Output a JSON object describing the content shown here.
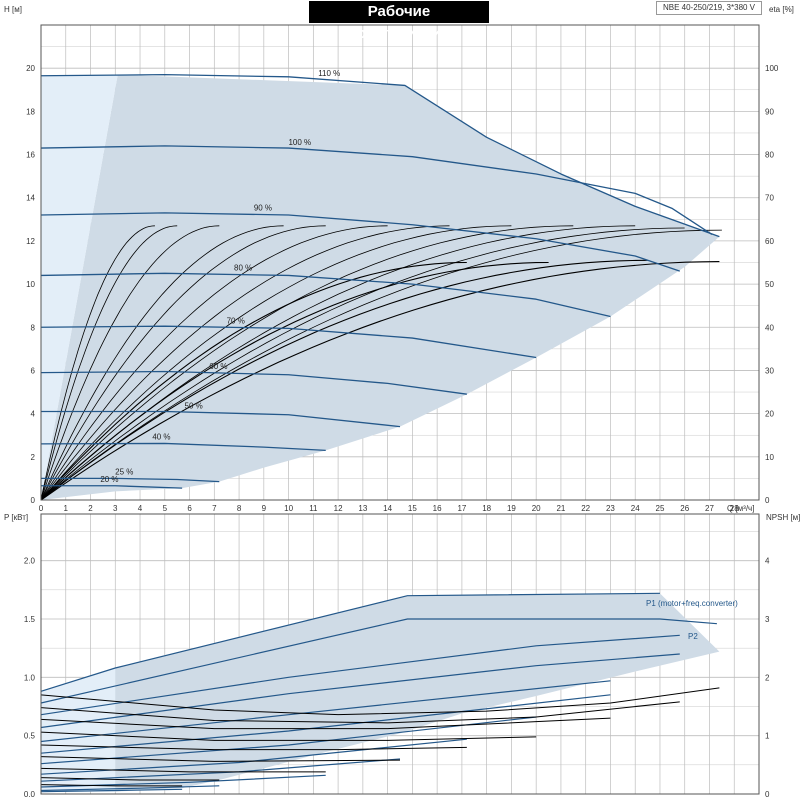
{
  "header": {
    "title": "Рабочие характеристики",
    "model": "NBE 40-250/219, 3*380 V"
  },
  "colors": {
    "envelope_fill": "#cfdbe6",
    "envelope_edge": "#2e5f8c",
    "light_fill": "#e3eef8",
    "curve_blue": "#24588a",
    "curve_black": "#000000",
    "grid": "#bdbdbd"
  },
  "chart_data": [
    {
      "type": "line",
      "title": "",
      "xlabel": "Q [м³/ч]",
      "ylabel": "H [м]",
      "y2label": "eta [%]",
      "xlim": [
        0,
        29
      ],
      "ylim": [
        0,
        22
      ],
      "y2lim": [
        0,
        110
      ],
      "x_ticks": [
        0,
        1,
        2,
        3,
        4,
        5,
        6,
        7,
        8,
        9,
        10,
        11,
        12,
        13,
        14,
        15,
        16,
        17,
        18,
        19,
        20,
        21,
        22,
        23,
        24,
        25,
        26,
        27,
        28
      ],
      "y_ticks": [
        0,
        2,
        4,
        6,
        8,
        10,
        12,
        14,
        16,
        18,
        20
      ],
      "y2_ticks": [
        0,
        10,
        20,
        30,
        40,
        50,
        60,
        70,
        80,
        90,
        100
      ],
      "grid": true,
      "envelope": [
        [
          0,
          0
        ],
        [
          3.1,
          19.7
        ],
        [
          14.7,
          19.2
        ],
        [
          18,
          16.8
        ],
        [
          21,
          15.1
        ],
        [
          24,
          13.6
        ],
        [
          27.4,
          12.2
        ],
        [
          26,
          10.8
        ],
        [
          23,
          8.5
        ],
        [
          20,
          6.6
        ],
        [
          17.2,
          4.9
        ],
        [
          14.5,
          3.4
        ],
        [
          11.5,
          2.3
        ],
        [
          9,
          1.5
        ],
        [
          7.2,
          0.85
        ],
        [
          5.7,
          0.55
        ],
        [
          3,
          0.4
        ]
      ],
      "light_region": [
        [
          0,
          0
        ],
        [
          0,
          19.65
        ],
        [
          3.1,
          19.7
        ]
      ],
      "head_series": [
        {
          "name": "110 %",
          "points": [
            [
              0,
              19.65
            ],
            [
              5,
              19.7
            ],
            [
              10,
              19.6
            ],
            [
              14.7,
              19.2
            ],
            [
              18,
              16.8
            ],
            [
              21,
              15.1
            ],
            [
              24,
              13.6
            ],
            [
              27.4,
              12.2
            ]
          ]
        },
        {
          "name": "100 %",
          "points": [
            [
              0,
              16.3
            ],
            [
              5,
              16.4
            ],
            [
              10,
              16.3
            ],
            [
              15,
              15.9
            ],
            [
              20,
              15.1
            ],
            [
              24,
              14.2
            ],
            [
              25.5,
              13.5
            ],
            [
              27.1,
              12.3
            ]
          ]
        },
        {
          "name": "90 %",
          "points": [
            [
              0,
              13.2
            ],
            [
              5,
              13.3
            ],
            [
              10,
              13.2
            ],
            [
              15,
              12.75
            ],
            [
              20,
              12.1
            ],
            [
              24,
              11.3
            ],
            [
              25.8,
              10.6
            ]
          ]
        },
        {
          "name": "80 %",
          "points": [
            [
              0,
              10.4
            ],
            [
              5,
              10.5
            ],
            [
              10,
              10.4
            ],
            [
              15,
              10.0
            ],
            [
              20,
              9.3
            ],
            [
              23,
              8.5
            ]
          ]
        },
        {
          "name": "70 %",
          "points": [
            [
              0,
              8.0
            ],
            [
              5,
              8.05
            ],
            [
              10,
              7.95
            ],
            [
              15,
              7.5
            ],
            [
              20,
              6.6
            ]
          ]
        },
        {
          "name": "60 %",
          "points": [
            [
              0,
              5.9
            ],
            [
              5,
              5.95
            ],
            [
              10,
              5.8
            ],
            [
              14,
              5.4
            ],
            [
              17.2,
              4.9
            ]
          ]
        },
        {
          "name": "50 %",
          "points": [
            [
              0,
              4.1
            ],
            [
              5,
              4.1
            ],
            [
              10,
              3.95
            ],
            [
              14.5,
              3.4
            ]
          ]
        },
        {
          "name": "40 %",
          "points": [
            [
              0,
              2.6
            ],
            [
              5,
              2.62
            ],
            [
              9,
              2.45
            ],
            [
              11.5,
              2.3
            ]
          ]
        },
        {
          "name": "25 %",
          "points": [
            [
              0,
              1.0
            ],
            [
              3,
              1.0
            ],
            [
              5.5,
              0.95
            ],
            [
              7.2,
              0.85
            ]
          ]
        },
        {
          "name": "20 %",
          "points": [
            [
              0,
              0.66
            ],
            [
              3,
              0.66
            ],
            [
              5.7,
              0.55
            ]
          ]
        }
      ],
      "eta_curves": [
        {
          "qmax": 4.6,
          "etamax": 63.5
        },
        {
          "qmax": 5.5,
          "etamax": 63.5
        },
        {
          "qmax": 7.2,
          "etamax": 63.5
        },
        {
          "qmax": 9.8,
          "etamax": 63.5
        },
        {
          "qmax": 11.5,
          "etamax": 63.5
        },
        {
          "qmax": 14.0,
          "etamax": 63.5
        },
        {
          "qmax": 16.5,
          "etamax": 63.5
        },
        {
          "qmax": 19.0,
          "etamax": 63.5
        },
        {
          "qmax": 21.5,
          "etamax": 63.5
        },
        {
          "qmax": 24.0,
          "etamax": 63.5
        },
        {
          "qmax": 26.0,
          "etamax": 63.0
        },
        {
          "qmax": 27.5,
          "etamax": 62.5
        },
        {
          "qmax": 17.2,
          "etamax": 55.0
        },
        {
          "qmax": 20.5,
          "etamax": 55.0
        },
        {
          "qmax": 24.5,
          "etamax": 55.5
        },
        {
          "qmax": 27.4,
          "etamax": 55.2
        }
      ]
    },
    {
      "type": "line",
      "title": "",
      "xlabel": "",
      "ylabel": "P [кВт]",
      "y2label": "NPSH [м]",
      "xlim": [
        0,
        29
      ],
      "ylim": [
        0,
        2.4
      ],
      "y2lim": [
        0,
        4.8
      ],
      "y_ticks": [
        0.0,
        0.5,
        1.0,
        1.5,
        2.0
      ],
      "y2_ticks": [
        0,
        1,
        2,
        3,
        4
      ],
      "grid": true,
      "envelope": [
        [
          0,
          0.88
        ],
        [
          3,
          1.08
        ],
        [
          14.8,
          1.7
        ],
        [
          25,
          1.72
        ],
        [
          27.4,
          1.22
        ],
        [
          24,
          1.05
        ],
        [
          20,
          0.84
        ],
        [
          17,
          0.69
        ],
        [
          14.5,
          0.52
        ],
        [
          11.5,
          0.36
        ],
        [
          9,
          0.22
        ],
        [
          7.2,
          0.12
        ],
        [
          5.7,
          0.05
        ],
        [
          3,
          0.02
        ],
        [
          0,
          0.02
        ]
      ],
      "light_region": [
        [
          0,
          0.88
        ],
        [
          3,
          1.08
        ],
        [
          3,
          0.02
        ],
        [
          0,
          0.02
        ]
      ],
      "series_labels": [
        "P1 (motor+freq.converter)",
        "P2"
      ],
      "p1_series": [
        {
          "points": [
            [
              0,
              0.88
            ],
            [
              3,
              1.08
            ],
            [
              14.8,
              1.7
            ],
            [
              25,
              1.72
            ]
          ]
        },
        {
          "points": [
            [
              0,
              0.78
            ],
            [
              14.8,
              1.5
            ],
            [
              25,
              1.5
            ],
            [
              27.3,
              1.46
            ]
          ]
        },
        {
          "points": [
            [
              0,
              0.68
            ],
            [
              10,
              1.0
            ],
            [
              20,
              1.27
            ],
            [
              25.8,
              1.36
            ]
          ]
        },
        {
          "points": [
            [
              0,
              0.57
            ],
            [
              10,
              0.86
            ],
            [
              20,
              1.1
            ],
            [
              25.8,
              1.2
            ]
          ]
        },
        {
          "points": [
            [
              0,
              0.45
            ],
            [
              10,
              0.68
            ],
            [
              23,
              0.97
            ]
          ]
        },
        {
          "points": [
            [
              0,
              0.35
            ],
            [
              10,
              0.54
            ],
            [
              23,
              0.85
            ]
          ]
        },
        {
          "points": [
            [
              0,
              0.26
            ],
            [
              10,
              0.42
            ],
            [
              20,
              0.66
            ]
          ]
        },
        {
          "points": [
            [
              0,
              0.17
            ],
            [
              8,
              0.27
            ],
            [
              17.2,
              0.47
            ]
          ]
        },
        {
          "points": [
            [
              0,
              0.11
            ],
            [
              8,
              0.19
            ],
            [
              14.5,
              0.3
            ]
          ]
        },
        {
          "points": [
            [
              0,
              0.06
            ],
            [
              6,
              0.1
            ],
            [
              11.5,
              0.16
            ]
          ]
        },
        {
          "points": [
            [
              0,
              0.03
            ],
            [
              4,
              0.05
            ],
            [
              7.2,
              0.07
            ]
          ]
        },
        {
          "points": [
            [
              0,
              0.02
            ],
            [
              3,
              0.03
            ],
            [
              5.7,
              0.04
            ]
          ]
        }
      ],
      "p2_series": [
        {
          "points": [
            [
              0,
              0.85
            ],
            [
              7,
              0.72
            ],
            [
              12,
              0.68
            ],
            [
              18,
              0.71
            ],
            [
              23,
              0.78
            ],
            [
              27.4,
              0.91
            ]
          ]
        },
        {
          "points": [
            [
              0,
              0.74
            ],
            [
              7,
              0.63
            ],
            [
              14,
              0.61
            ],
            [
              20,
              0.66
            ],
            [
              25.8,
              0.79
            ]
          ]
        },
        {
          "points": [
            [
              0,
              0.64
            ],
            [
              7,
              0.56
            ],
            [
              14,
              0.56
            ],
            [
              20,
              0.62
            ],
            [
              23,
              0.65
            ]
          ]
        },
        {
          "points": [
            [
              0,
              0.53
            ],
            [
              7,
              0.46
            ],
            [
              14,
              0.46
            ],
            [
              20,
              0.49
            ]
          ]
        },
        {
          "points": [
            [
              0,
              0.42
            ],
            [
              7,
              0.38
            ],
            [
              12,
              0.38
            ],
            [
              17.2,
              0.4
            ]
          ]
        },
        {
          "points": [
            [
              0,
              0.32
            ],
            [
              7,
              0.28
            ],
            [
              14.5,
              0.29
            ]
          ]
        },
        {
          "points": [
            [
              0,
              0.22
            ],
            [
              6,
              0.19
            ],
            [
              11.5,
              0.19
            ]
          ]
        },
        {
          "points": [
            [
              0,
              0.14
            ],
            [
              4,
              0.12
            ],
            [
              7.2,
              0.12
            ]
          ]
        },
        {
          "points": [
            [
              0,
              0.08
            ],
            [
              3,
              0.07
            ],
            [
              5.7,
              0.07
            ]
          ]
        }
      ]
    }
  ]
}
